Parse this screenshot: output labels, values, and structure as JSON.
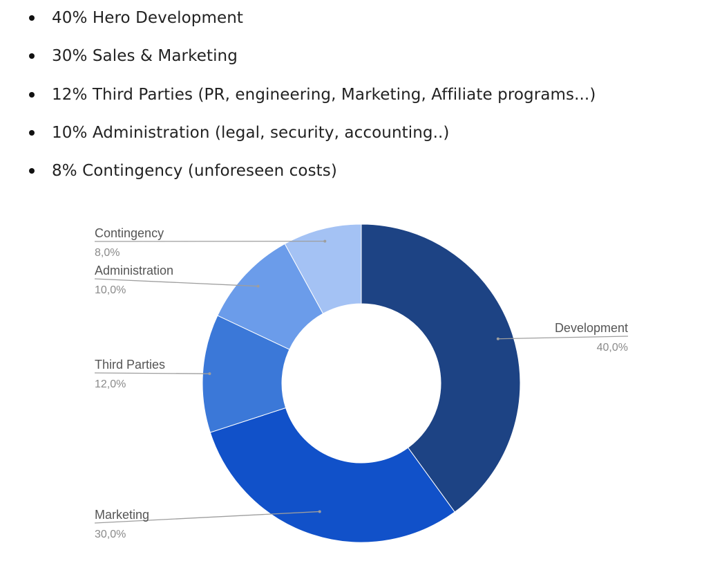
{
  "bullets": [
    {
      "text": "40% Hero Development"
    },
    {
      "text": "30% Sales & Marketing"
    },
    {
      "text": "12% Third Parties (PR, engineering, Marketing, Affiliate programs...)"
    },
    {
      "text": "10% Administration (legal, security, accounting..)"
    },
    {
      "text": "8% Contingency (unforeseen costs)"
    }
  ],
  "chart_data": {
    "type": "pie",
    "donut": true,
    "legend": "outside labels with leader lines",
    "slices": [
      {
        "name": "Development",
        "value": 40.0,
        "label": "40,0%",
        "color": "#1d4384"
      },
      {
        "name": "Marketing",
        "value": 30.0,
        "label": "30,0%",
        "color": "#1151c9"
      },
      {
        "name": "Third Parties",
        "value": 12.0,
        "label": "12,0%",
        "color": "#3b78d8"
      },
      {
        "name": "Administration",
        "value": 10.0,
        "label": "10,0%",
        "color": "#6b9cea"
      },
      {
        "name": "Contingency",
        "value": 8.0,
        "label": "8,0%",
        "color": "#a4c2f4"
      }
    ]
  }
}
